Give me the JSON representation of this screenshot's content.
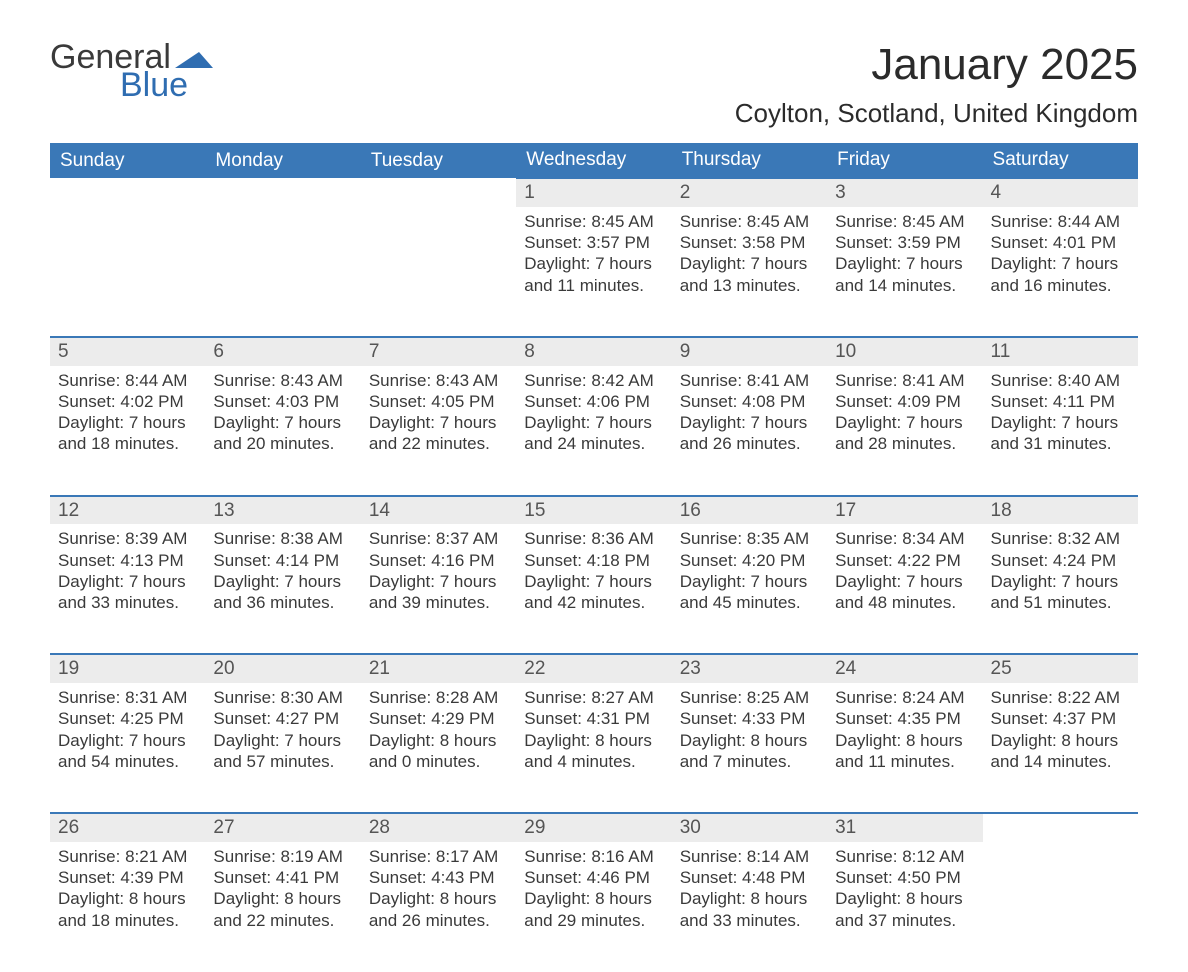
{
  "brand": {
    "word1": "General",
    "word2": "Blue",
    "color_primary": "#3a78b7",
    "color_accent": "#2f6db1"
  },
  "title": "January 2025",
  "location": "Coylton, Scotland, United Kingdom",
  "colors": {
    "header_bg": "#3a78b7",
    "header_text": "#ffffff",
    "daynum_bg": "#ececec",
    "rule": "#3a78b7",
    "text": "#3a3a3a",
    "page_bg": "#ffffff"
  },
  "fonts": {
    "title_size_pt": 33,
    "location_size_pt": 20,
    "header_size_pt": 14,
    "body_size_pt": 13
  },
  "day_headers": [
    "Sunday",
    "Monday",
    "Tuesday",
    "Wednesday",
    "Thursday",
    "Friday",
    "Saturday"
  ],
  "weeks": [
    [
      null,
      null,
      null,
      {
        "n": "1",
        "sunrise": "Sunrise: 8:45 AM",
        "sunset": "Sunset: 3:57 PM",
        "day1": "Daylight: 7 hours",
        "day2": "and 11 minutes."
      },
      {
        "n": "2",
        "sunrise": "Sunrise: 8:45 AM",
        "sunset": "Sunset: 3:58 PM",
        "day1": "Daylight: 7 hours",
        "day2": "and 13 minutes."
      },
      {
        "n": "3",
        "sunrise": "Sunrise: 8:45 AM",
        "sunset": "Sunset: 3:59 PM",
        "day1": "Daylight: 7 hours",
        "day2": "and 14 minutes."
      },
      {
        "n": "4",
        "sunrise": "Sunrise: 8:44 AM",
        "sunset": "Sunset: 4:01 PM",
        "day1": "Daylight: 7 hours",
        "day2": "and 16 minutes."
      }
    ],
    [
      {
        "n": "5",
        "sunrise": "Sunrise: 8:44 AM",
        "sunset": "Sunset: 4:02 PM",
        "day1": "Daylight: 7 hours",
        "day2": "and 18 minutes."
      },
      {
        "n": "6",
        "sunrise": "Sunrise: 8:43 AM",
        "sunset": "Sunset: 4:03 PM",
        "day1": "Daylight: 7 hours",
        "day2": "and 20 minutes."
      },
      {
        "n": "7",
        "sunrise": "Sunrise: 8:43 AM",
        "sunset": "Sunset: 4:05 PM",
        "day1": "Daylight: 7 hours",
        "day2": "and 22 minutes."
      },
      {
        "n": "8",
        "sunrise": "Sunrise: 8:42 AM",
        "sunset": "Sunset: 4:06 PM",
        "day1": "Daylight: 7 hours",
        "day2": "and 24 minutes."
      },
      {
        "n": "9",
        "sunrise": "Sunrise: 8:41 AM",
        "sunset": "Sunset: 4:08 PM",
        "day1": "Daylight: 7 hours",
        "day2": "and 26 minutes."
      },
      {
        "n": "10",
        "sunrise": "Sunrise: 8:41 AM",
        "sunset": "Sunset: 4:09 PM",
        "day1": "Daylight: 7 hours",
        "day2": "and 28 minutes."
      },
      {
        "n": "11",
        "sunrise": "Sunrise: 8:40 AM",
        "sunset": "Sunset: 4:11 PM",
        "day1": "Daylight: 7 hours",
        "day2": "and 31 minutes."
      }
    ],
    [
      {
        "n": "12",
        "sunrise": "Sunrise: 8:39 AM",
        "sunset": "Sunset: 4:13 PM",
        "day1": "Daylight: 7 hours",
        "day2": "and 33 minutes."
      },
      {
        "n": "13",
        "sunrise": "Sunrise: 8:38 AM",
        "sunset": "Sunset: 4:14 PM",
        "day1": "Daylight: 7 hours",
        "day2": "and 36 minutes."
      },
      {
        "n": "14",
        "sunrise": "Sunrise: 8:37 AM",
        "sunset": "Sunset: 4:16 PM",
        "day1": "Daylight: 7 hours",
        "day2": "and 39 minutes."
      },
      {
        "n": "15",
        "sunrise": "Sunrise: 8:36 AM",
        "sunset": "Sunset: 4:18 PM",
        "day1": "Daylight: 7 hours",
        "day2": "and 42 minutes."
      },
      {
        "n": "16",
        "sunrise": "Sunrise: 8:35 AM",
        "sunset": "Sunset: 4:20 PM",
        "day1": "Daylight: 7 hours",
        "day2": "and 45 minutes."
      },
      {
        "n": "17",
        "sunrise": "Sunrise: 8:34 AM",
        "sunset": "Sunset: 4:22 PM",
        "day1": "Daylight: 7 hours",
        "day2": "and 48 minutes."
      },
      {
        "n": "18",
        "sunrise": "Sunrise: 8:32 AM",
        "sunset": "Sunset: 4:24 PM",
        "day1": "Daylight: 7 hours",
        "day2": "and 51 minutes."
      }
    ],
    [
      {
        "n": "19",
        "sunrise": "Sunrise: 8:31 AM",
        "sunset": "Sunset: 4:25 PM",
        "day1": "Daylight: 7 hours",
        "day2": "and 54 minutes."
      },
      {
        "n": "20",
        "sunrise": "Sunrise: 8:30 AM",
        "sunset": "Sunset: 4:27 PM",
        "day1": "Daylight: 7 hours",
        "day2": "and 57 minutes."
      },
      {
        "n": "21",
        "sunrise": "Sunrise: 8:28 AM",
        "sunset": "Sunset: 4:29 PM",
        "day1": "Daylight: 8 hours",
        "day2": "and 0 minutes."
      },
      {
        "n": "22",
        "sunrise": "Sunrise: 8:27 AM",
        "sunset": "Sunset: 4:31 PM",
        "day1": "Daylight: 8 hours",
        "day2": "and 4 minutes."
      },
      {
        "n": "23",
        "sunrise": "Sunrise: 8:25 AM",
        "sunset": "Sunset: 4:33 PM",
        "day1": "Daylight: 8 hours",
        "day2": "and 7 minutes."
      },
      {
        "n": "24",
        "sunrise": "Sunrise: 8:24 AM",
        "sunset": "Sunset: 4:35 PM",
        "day1": "Daylight: 8 hours",
        "day2": "and 11 minutes."
      },
      {
        "n": "25",
        "sunrise": "Sunrise: 8:22 AM",
        "sunset": "Sunset: 4:37 PM",
        "day1": "Daylight: 8 hours",
        "day2": "and 14 minutes."
      }
    ],
    [
      {
        "n": "26",
        "sunrise": "Sunrise: 8:21 AM",
        "sunset": "Sunset: 4:39 PM",
        "day1": "Daylight: 8 hours",
        "day2": "and 18 minutes."
      },
      {
        "n": "27",
        "sunrise": "Sunrise: 8:19 AM",
        "sunset": "Sunset: 4:41 PM",
        "day1": "Daylight: 8 hours",
        "day2": "and 22 minutes."
      },
      {
        "n": "28",
        "sunrise": "Sunrise: 8:17 AM",
        "sunset": "Sunset: 4:43 PM",
        "day1": "Daylight: 8 hours",
        "day2": "and 26 minutes."
      },
      {
        "n": "29",
        "sunrise": "Sunrise: 8:16 AM",
        "sunset": "Sunset: 4:46 PM",
        "day1": "Daylight: 8 hours",
        "day2": "and 29 minutes."
      },
      {
        "n": "30",
        "sunrise": "Sunrise: 8:14 AM",
        "sunset": "Sunset: 4:48 PM",
        "day1": "Daylight: 8 hours",
        "day2": "and 33 minutes."
      },
      {
        "n": "31",
        "sunrise": "Sunrise: 8:12 AM",
        "sunset": "Sunset: 4:50 PM",
        "day1": "Daylight: 8 hours",
        "day2": "and 37 minutes."
      },
      null
    ]
  ]
}
